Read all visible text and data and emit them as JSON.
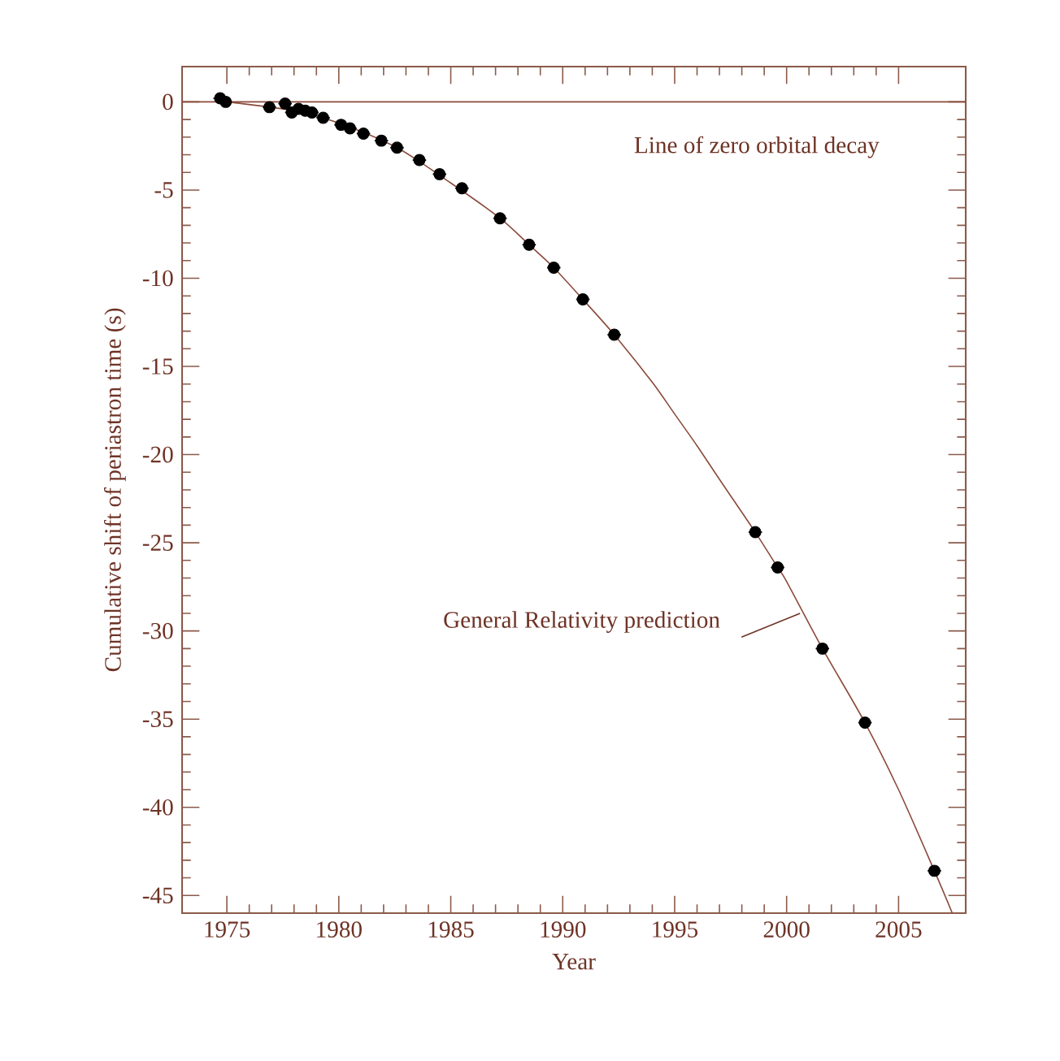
{
  "chart_data": {
    "type": "scatter",
    "xlabel": "Year",
    "ylabel": "Cumulative shift of periastron time (s)",
    "xlim": [
      1973,
      2008
    ],
    "xticks": [
      1975,
      1980,
      1985,
      1990,
      1995,
      2000,
      2005
    ],
    "ylim": [
      -46,
      2
    ],
    "yticks": [
      0,
      -5,
      -10,
      -15,
      -20,
      -25,
      -30,
      -35,
      -40,
      -45
    ],
    "marker": "circle",
    "grid": false,
    "series": [
      {
        "color": "#000000",
        "x": [
          1974.7,
          1974.95,
          1976.9,
          1977.6,
          1977.9,
          1978.2,
          1978.5,
          1978.8,
          1979.3,
          1980.1,
          1980.5,
          1981.1,
          1981.9,
          1982.6,
          1983.6,
          1984.5,
          1985.5,
          1987.2,
          1988.5,
          1989.6,
          1990.9,
          1992.3,
          1998.6,
          1999.6,
          2001.6,
          2003.5,
          2006.6
        ],
        "values": [
          0.2,
          0.0,
          -0.3,
          -0.1,
          -0.6,
          -0.4,
          -0.5,
          -0.6,
          -0.9,
          -1.3,
          -1.5,
          -1.8,
          -2.2,
          -2.6,
          -3.3,
          -4.1,
          -4.9,
          -6.6,
          -8.1,
          -9.4,
          -11.2,
          -13.2,
          -24.4,
          -26.4,
          -31.0,
          -35.2,
          -43.6
        ],
        "xerrors": [
          0.3,
          0.3,
          0.3,
          0.3,
          0.3,
          0.3,
          0.3,
          0.3,
          0.3,
          0.3,
          0.3,
          0.3,
          0.3,
          0.3,
          0.3,
          0.3,
          0.3,
          0.3,
          0.3,
          0.3,
          0.3,
          0.3,
          0.3,
          0.3,
          0.3,
          0.3,
          0.3
        ]
      },
      {
        "type": "line",
        "color": "#8b4a3a",
        "marker": "none",
        "x": [
          1975,
          1978,
          1980,
          1982.6,
          1985,
          1987.2,
          1988.5,
          1989.6,
          1990.9,
          1992.3,
          1994,
          1995,
          1996,
          1997,
          1998.6,
          1999.6,
          2000,
          2001.6,
          2003.5,
          2005,
          2006.6,
          2007.4
        ],
        "values": [
          0,
          -0.5,
          -1.2,
          -2.6,
          -4.6,
          -6.6,
          -8.1,
          -9.4,
          -11.2,
          -13.2,
          -15.9,
          -17.7,
          -19.5,
          -21.4,
          -24.4,
          -26.4,
          -27.2,
          -31.0,
          -35.2,
          -39.0,
          -43.6,
          -46.0
        ]
      }
    ],
    "ref_lines": [
      {
        "axis": "y",
        "value": 0,
        "label": "Line of zero orbital decay",
        "color": "#8b4a3a"
      }
    ],
    "annotations": [
      {
        "text": "General Relativity prediction",
        "x": 2000.6,
        "y": -29.0
      }
    ]
  }
}
